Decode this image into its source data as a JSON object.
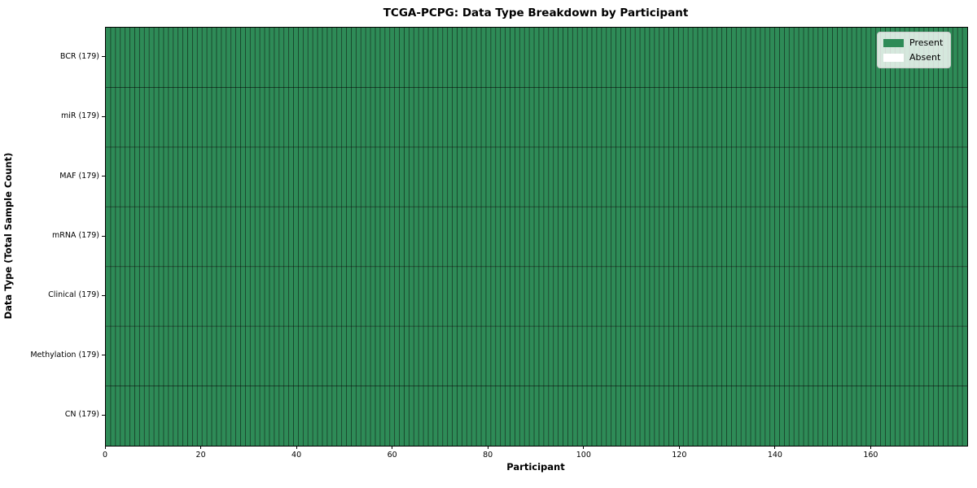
{
  "chart_data": {
    "type": "heatmap",
    "title": "TCGA-PCPG: Data Type Breakdown by Participant",
    "xlabel": "Participant",
    "ylabel": "Data Type (Total Sample Count)",
    "n_participants": 179,
    "xlim": [
      0,
      180
    ],
    "x_ticks": [
      0,
      20,
      40,
      60,
      80,
      100,
      120,
      140,
      160
    ],
    "rows": [
      {
        "label": "BCR (179)",
        "data_type": "BCR",
        "total_samples": 179,
        "present_count": 179
      },
      {
        "label": "miR (179)",
        "data_type": "miR",
        "total_samples": 179,
        "present_count": 179
      },
      {
        "label": "MAF (179)",
        "data_type": "MAF",
        "total_samples": 179,
        "present_count": 179
      },
      {
        "label": "mRNA (179)",
        "data_type": "mRNA",
        "total_samples": 179,
        "present_count": 179
      },
      {
        "label": "Clinical (179)",
        "data_type": "Clinical",
        "total_samples": 179,
        "present_count": 179
      },
      {
        "label": "Methylation (179)",
        "data_type": "Methylation",
        "total_samples": 179,
        "present_count": 179
      },
      {
        "label": "CN (179)",
        "data_type": "CN",
        "total_samples": 179,
        "present_count": 179
      }
    ],
    "colors": {
      "present": "#2e8b57",
      "absent": "#ffffff",
      "grid_line": "#000000",
      "grid_line_opacity": 0.6,
      "spine": "#000000",
      "background": "#ffffff"
    },
    "legend": {
      "position": "upper right",
      "entries": [
        {
          "label": "Present",
          "color": "#2e8b57"
        },
        {
          "label": "Absent",
          "color": "#ffffff"
        }
      ]
    },
    "grid": true
  }
}
